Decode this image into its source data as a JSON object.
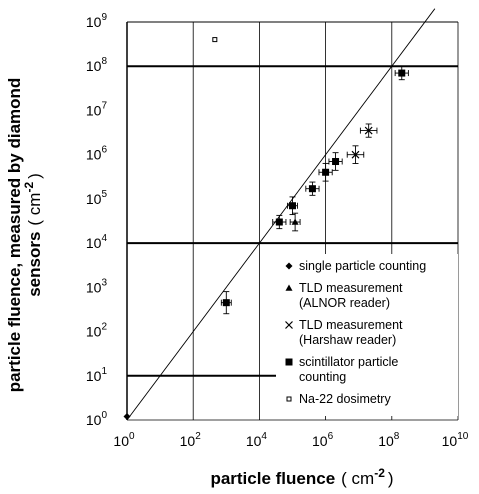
{
  "chart_data": {
    "type": "scatter",
    "xlabel": "particle fluence",
    "xlabel_unit": "( cm",
    "xlabel_unit_exp": "-2",
    "xlabel_unit_close": ")",
    "ylabel_line1": "particle fluence, measured by diamond",
    "ylabel_line2": "sensors",
    "ylabel_unit": "( cm",
    "ylabel_unit_exp": "-2",
    "ylabel_unit_close": ")",
    "x_scale": "log",
    "y_scale": "log",
    "xlim": [
      1,
      10000000000
    ],
    "ylim": [
      1,
      1000000000
    ],
    "x_ticks": [
      {
        "base": "10",
        "exp": "0"
      },
      {
        "base": "10",
        "exp": "2"
      },
      {
        "base": "10",
        "exp": "4"
      },
      {
        "base": "10",
        "exp": "6"
      },
      {
        "base": "10",
        "exp": "8"
      },
      {
        "base": "10",
        "exp": "10"
      }
    ],
    "y_ticks": [
      {
        "base": "10",
        "exp": "0"
      },
      {
        "base": "10",
        "exp": "1"
      },
      {
        "base": "10",
        "exp": "2"
      },
      {
        "base": "10",
        "exp": "3"
      },
      {
        "base": "10",
        "exp": "4"
      },
      {
        "base": "10",
        "exp": "5"
      },
      {
        "base": "10",
        "exp": "6"
      },
      {
        "base": "10",
        "exp": "7"
      },
      {
        "base": "10",
        "exp": "8"
      },
      {
        "base": "10",
        "exp": "9"
      }
    ],
    "grid": "x gridlines at each labeled decade; bold horizontal lines at 10, 10000, 100000000",
    "fit_line": {
      "x": [
        1,
        2000000000
      ],
      "y": [
        1,
        2000000000
      ]
    },
    "legend_position": "lower-right",
    "series": [
      {
        "name": "single particle counting",
        "marker": "diamond",
        "points": [
          {
            "x": 1,
            "y": 1.2
          }
        ]
      },
      {
        "name": "TLD measurement (ALNOR reader)",
        "marker": "triangle",
        "points": [
          {
            "x": 120000,
            "y": 30000,
            "xerr": 0.15,
            "yerr": 0.2
          }
        ]
      },
      {
        "name": "TLD measurement (Harshaw reader)",
        "marker": "x",
        "points": [
          {
            "x": 8000000,
            "y": 1000000,
            "xerr": 0.25,
            "yerr": 0.2
          },
          {
            "x": 20000000,
            "y": 3500000,
            "xerr": 0.25,
            "yerr": 0.15
          }
        ]
      },
      {
        "name": "scintillator particle counting",
        "marker": "square",
        "points": [
          {
            "x": 1000,
            "y": 450,
            "xerr": 0.15,
            "yerr": 0.25
          },
          {
            "x": 40000,
            "y": 30000,
            "xerr": 0.2,
            "yerr": 0.15
          },
          {
            "x": 100000,
            "y": 70000,
            "xerr": 0.15,
            "yerr": 0.2
          },
          {
            "x": 400000,
            "y": 170000,
            "xerr": 0.2,
            "yerr": 0.15
          },
          {
            "x": 1000000,
            "y": 400000,
            "xerr": 0.2,
            "yerr": 0.2
          },
          {
            "x": 2000000,
            "y": 700000,
            "xerr": 0.2,
            "yerr": 0.2
          },
          {
            "x": 200000000,
            "y": 70000000,
            "xerr": 0.2,
            "yerr": 0.15
          }
        ]
      },
      {
        "name": "Na-22 dosimetry",
        "marker": "open-square",
        "points": [
          {
            "x": 450,
            "y": 400000000
          }
        ]
      }
    ],
    "legend": [
      {
        "marker": "diamond",
        "lines": [
          "single particle counting"
        ]
      },
      {
        "marker": "triangle",
        "lines": [
          "TLD measurement",
          "(ALNOR reader)"
        ]
      },
      {
        "marker": "x",
        "lines": [
          "TLD measurement",
          "(Harshaw reader)"
        ]
      },
      {
        "marker": "square",
        "lines": [
          "scintillator particle",
          "counting"
        ]
      },
      {
        "marker": "open-square",
        "lines": [
          "Na-22 dosimetry"
        ]
      }
    ]
  }
}
